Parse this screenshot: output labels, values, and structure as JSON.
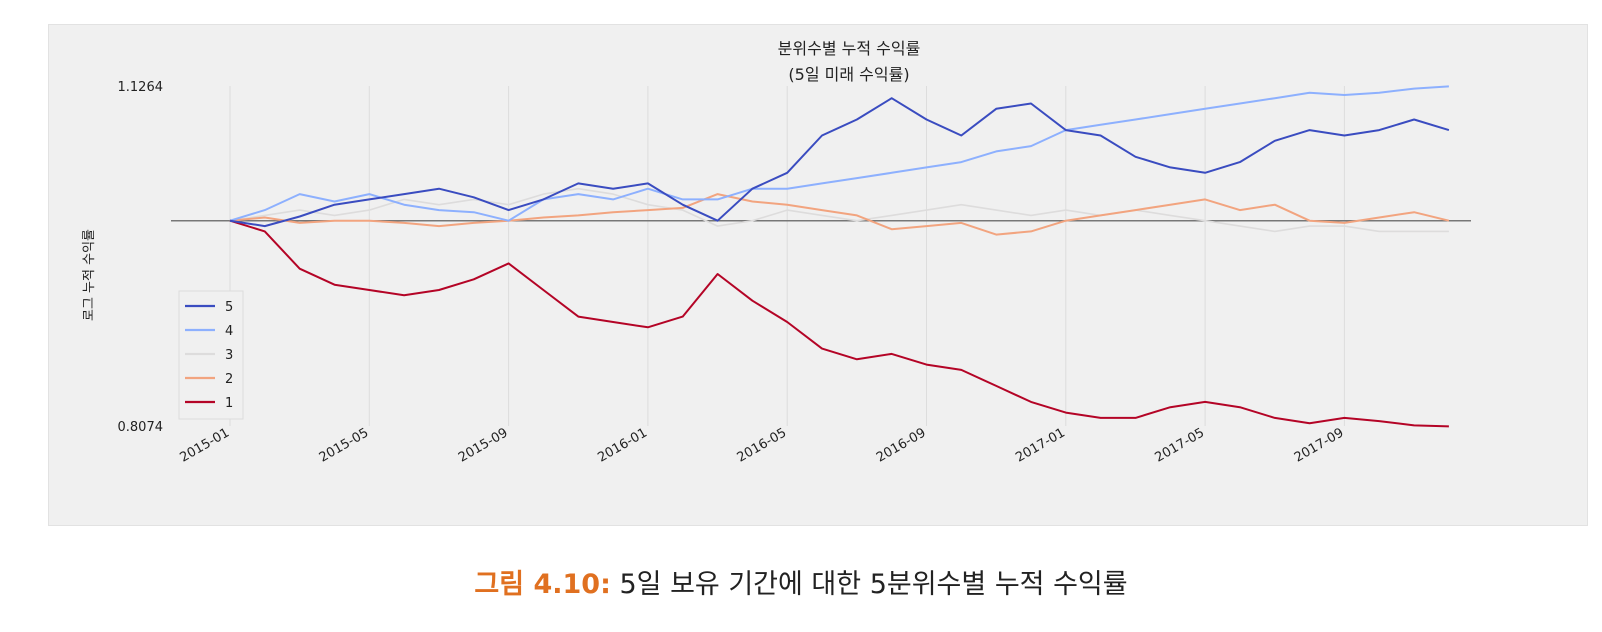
{
  "caption": {
    "label": "그림 4.10:",
    "text": "5일 보유 기간에 대한 5분위수별 누적 수익률"
  },
  "chart_data": {
    "type": "line",
    "title": "분위수별 누적 수익률",
    "subtitle": "(5일 미래 수익률)",
    "ylabel": "로그 누적 수익률",
    "xlabel": "",
    "x_ticks": [
      "2015-01",
      "2015-05",
      "2015-09",
      "2016-01",
      "2016-05",
      "2016-09",
      "2017-01",
      "2017-05",
      "2017-09"
    ],
    "y_ticks": [
      0.8074,
      1.1264
    ],
    "ylim": [
      0.8074,
      1.1264
    ],
    "baseline": 1.0,
    "x_start": "2015-01",
    "x_end": "2017-12",
    "grid": true,
    "legend_position": "center-left",
    "series": [
      {
        "name": "5",
        "color": "#3a4cc0",
        "points": [
          [
            "2015-01",
            1.0
          ],
          [
            "2015-02",
            0.995
          ],
          [
            "2015-03",
            1.004
          ],
          [
            "2015-04",
            1.015
          ],
          [
            "2015-05",
            1.02
          ],
          [
            "2015-06",
            1.025
          ],
          [
            "2015-07",
            1.03
          ],
          [
            "2015-08",
            1.022
          ],
          [
            "2015-09",
            1.01
          ],
          [
            "2015-10",
            1.02
          ],
          [
            "2015-11",
            1.035
          ],
          [
            "2015-12",
            1.03
          ],
          [
            "2016-01",
            1.035
          ],
          [
            "2016-02",
            1.015
          ],
          [
            "2016-03",
            1.0
          ],
          [
            "2016-04",
            1.03
          ],
          [
            "2016-05",
            1.045
          ],
          [
            "2016-06",
            1.08
          ],
          [
            "2016-07",
            1.095
          ],
          [
            "2016-08",
            1.115
          ],
          [
            "2016-09",
            1.095
          ],
          [
            "2016-10",
            1.08
          ],
          [
            "2016-11",
            1.105
          ],
          [
            "2016-12",
            1.11
          ],
          [
            "2017-01",
            1.085
          ],
          [
            "2017-02",
            1.08
          ],
          [
            "2017-03",
            1.06
          ],
          [
            "2017-04",
            1.05
          ],
          [
            "2017-05",
            1.045
          ],
          [
            "2017-06",
            1.055
          ],
          [
            "2017-07",
            1.075
          ],
          [
            "2017-08",
            1.085
          ],
          [
            "2017-09",
            1.08
          ],
          [
            "2017-10",
            1.085
          ],
          [
            "2017-11",
            1.095
          ],
          [
            "2017-12",
            1.085
          ]
        ]
      },
      {
        "name": "4",
        "color": "#8db0fe",
        "points": [
          [
            "2015-01",
            1.0
          ],
          [
            "2015-02",
            1.01
          ],
          [
            "2015-03",
            1.025
          ],
          [
            "2015-04",
            1.018
          ],
          [
            "2015-05",
            1.025
          ],
          [
            "2015-06",
            1.015
          ],
          [
            "2015-07",
            1.01
          ],
          [
            "2015-08",
            1.008
          ],
          [
            "2015-09",
            1.0
          ],
          [
            "2015-10",
            1.02
          ],
          [
            "2015-11",
            1.025
          ],
          [
            "2015-12",
            1.02
          ],
          [
            "2016-01",
            1.03
          ],
          [
            "2016-02",
            1.02
          ],
          [
            "2016-03",
            1.02
          ],
          [
            "2016-04",
            1.03
          ],
          [
            "2016-05",
            1.03
          ],
          [
            "2016-06",
            1.035
          ],
          [
            "2016-07",
            1.04
          ],
          [
            "2016-08",
            1.045
          ],
          [
            "2016-09",
            1.05
          ],
          [
            "2016-10",
            1.055
          ],
          [
            "2016-11",
            1.065
          ],
          [
            "2016-12",
            1.07
          ],
          [
            "2017-01",
            1.085
          ],
          [
            "2017-02",
            1.09
          ],
          [
            "2017-03",
            1.095
          ],
          [
            "2017-04",
            1.1
          ],
          [
            "2017-05",
            1.105
          ],
          [
            "2017-06",
            1.11
          ],
          [
            "2017-07",
            1.115
          ],
          [
            "2017-08",
            1.12
          ],
          [
            "2017-09",
            1.118
          ],
          [
            "2017-10",
            1.12
          ],
          [
            "2017-11",
            1.124
          ],
          [
            "2017-12",
            1.126
          ]
        ]
      },
      {
        "name": "3",
        "color": "#dddcdc",
        "points": [
          [
            "2015-01",
            1.0
          ],
          [
            "2015-02",
            1.005
          ],
          [
            "2015-03",
            1.01
          ],
          [
            "2015-04",
            1.005
          ],
          [
            "2015-05",
            1.01
          ],
          [
            "2015-06",
            1.02
          ],
          [
            "2015-07",
            1.015
          ],
          [
            "2015-08",
            1.02
          ],
          [
            "2015-09",
            1.015
          ],
          [
            "2015-10",
            1.025
          ],
          [
            "2015-11",
            1.03
          ],
          [
            "2015-12",
            1.025
          ],
          [
            "2016-01",
            1.015
          ],
          [
            "2016-02",
            1.01
          ],
          [
            "2016-03",
            0.995
          ],
          [
            "2016-04",
            1.0
          ],
          [
            "2016-05",
            1.01
          ],
          [
            "2016-06",
            1.005
          ],
          [
            "2016-07",
            1.0
          ],
          [
            "2016-08",
            1.005
          ],
          [
            "2016-09",
            1.01
          ],
          [
            "2016-10",
            1.015
          ],
          [
            "2016-11",
            1.01
          ],
          [
            "2016-12",
            1.005
          ],
          [
            "2017-01",
            1.01
          ],
          [
            "2017-02",
            1.005
          ],
          [
            "2017-03",
            1.01
          ],
          [
            "2017-04",
            1.005
          ],
          [
            "2017-05",
            1.0
          ],
          [
            "2017-06",
            0.995
          ],
          [
            "2017-07",
            0.99
          ],
          [
            "2017-08",
            0.995
          ],
          [
            "2017-09",
            0.995
          ],
          [
            "2017-10",
            0.99
          ],
          [
            "2017-11",
            0.99
          ],
          [
            "2017-12",
            0.99
          ]
        ]
      },
      {
        "name": "2",
        "color": "#f2a47f",
        "points": [
          [
            "2015-01",
            1.0
          ],
          [
            "2015-02",
            1.003
          ],
          [
            "2015-03",
            0.998
          ],
          [
            "2015-04",
            1.0
          ],
          [
            "2015-05",
            1.0
          ],
          [
            "2015-06",
            0.998
          ],
          [
            "2015-07",
            0.995
          ],
          [
            "2015-08",
            0.998
          ],
          [
            "2015-09",
            1.0
          ],
          [
            "2015-10",
            1.003
          ],
          [
            "2015-11",
            1.005
          ],
          [
            "2015-12",
            1.008
          ],
          [
            "2016-01",
            1.01
          ],
          [
            "2016-02",
            1.012
          ],
          [
            "2016-03",
            1.025
          ],
          [
            "2016-04",
            1.018
          ],
          [
            "2016-05",
            1.015
          ],
          [
            "2016-06",
            1.01
          ],
          [
            "2016-07",
            1.005
          ],
          [
            "2016-08",
            0.992
          ],
          [
            "2016-09",
            0.995
          ],
          [
            "2016-10",
            0.998
          ],
          [
            "2016-11",
            0.987
          ],
          [
            "2016-12",
            0.99
          ],
          [
            "2017-01",
            1.0
          ],
          [
            "2017-02",
            1.005
          ],
          [
            "2017-03",
            1.01
          ],
          [
            "2017-04",
            1.015
          ],
          [
            "2017-05",
            1.02
          ],
          [
            "2017-06",
            1.01
          ],
          [
            "2017-07",
            1.015
          ],
          [
            "2017-08",
            1.0
          ],
          [
            "2017-09",
            0.998
          ],
          [
            "2017-10",
            1.003
          ],
          [
            "2017-11",
            1.008
          ],
          [
            "2017-12",
            1.0
          ]
        ]
      },
      {
        "name": "1",
        "color": "#b40426",
        "points": [
          [
            "2015-01",
            1.0
          ],
          [
            "2015-02",
            0.99
          ],
          [
            "2015-03",
            0.955
          ],
          [
            "2015-04",
            0.94
          ],
          [
            "2015-05",
            0.935
          ],
          [
            "2015-06",
            0.93
          ],
          [
            "2015-07",
            0.935
          ],
          [
            "2015-08",
            0.945
          ],
          [
            "2015-09",
            0.96
          ],
          [
            "2015-10",
            0.935
          ],
          [
            "2015-11",
            0.91
          ],
          [
            "2015-12",
            0.905
          ],
          [
            "2016-01",
            0.9
          ],
          [
            "2016-02",
            0.91
          ],
          [
            "2016-03",
            0.95
          ],
          [
            "2016-04",
            0.925
          ],
          [
            "2016-05",
            0.905
          ],
          [
            "2016-06",
            0.88
          ],
          [
            "2016-07",
            0.87
          ],
          [
            "2016-08",
            0.875
          ],
          [
            "2016-09",
            0.865
          ],
          [
            "2016-10",
            0.86
          ],
          [
            "2016-11",
            0.845
          ],
          [
            "2016-12",
            0.83
          ],
          [
            "2017-01",
            0.82
          ],
          [
            "2017-02",
            0.815
          ],
          [
            "2017-03",
            0.815
          ],
          [
            "2017-04",
            0.825
          ],
          [
            "2017-05",
            0.83
          ],
          [
            "2017-06",
            0.825
          ],
          [
            "2017-07",
            0.815
          ],
          [
            "2017-08",
            0.81
          ],
          [
            "2017-09",
            0.815
          ],
          [
            "2017-10",
            0.812
          ],
          [
            "2017-11",
            0.808
          ],
          [
            "2017-12",
            0.807
          ]
        ]
      }
    ]
  }
}
